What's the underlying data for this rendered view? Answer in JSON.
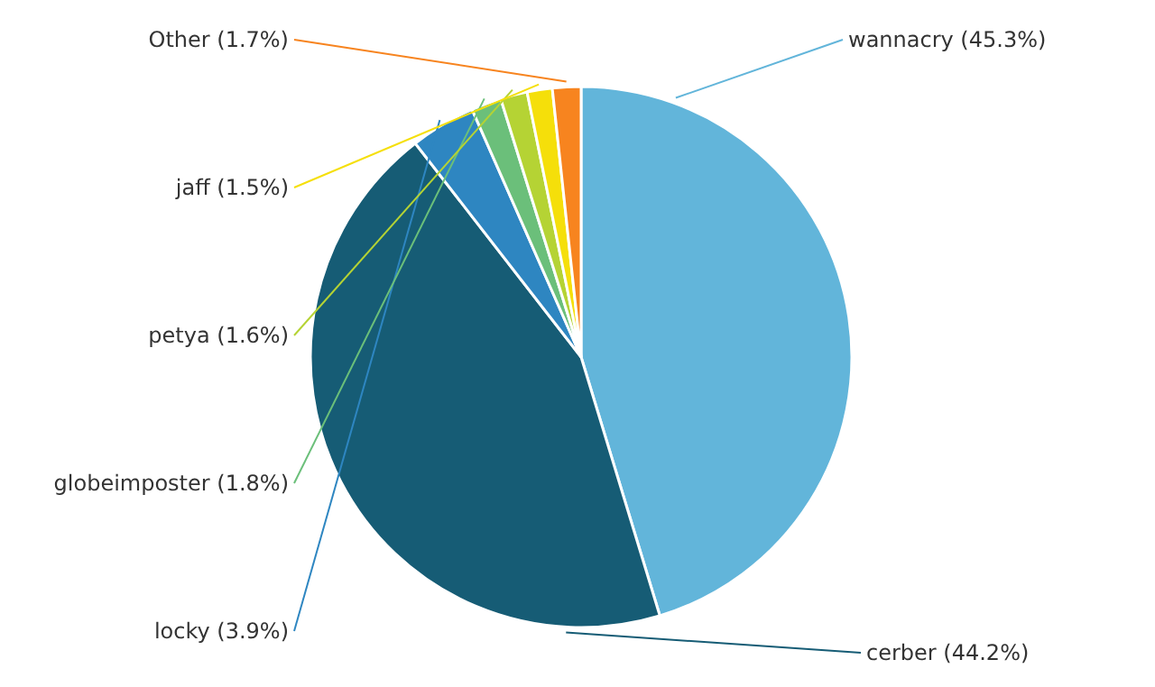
{
  "chart_data": {
    "type": "pie",
    "categories": [
      "wannacry",
      "cerber",
      "locky",
      "globeimposter",
      "petya",
      "jaff",
      "Other"
    ],
    "values": [
      45.3,
      44.2,
      3.9,
      1.8,
      1.6,
      1.5,
      1.7
    ],
    "value_labels": [
      "(45.3%)",
      "(44.2%)",
      "(3.9%)",
      "(1.8%)",
      "(1.6%)",
      "(1.5%)",
      "(1.7%)"
    ],
    "colors": [
      "#62b5da",
      "#165c75",
      "#2e86c1",
      "#6bbf7a",
      "#b5d334",
      "#f5df0a",
      "#f7841f"
    ]
  }
}
